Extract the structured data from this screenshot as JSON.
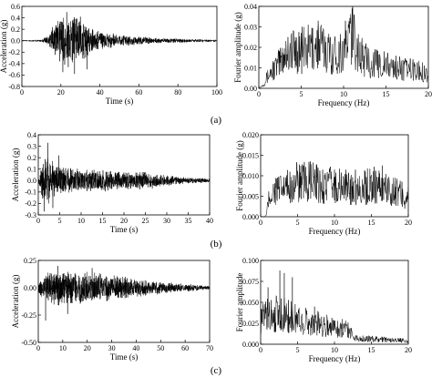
{
  "panel_labels": [
    "(a)",
    "(b)",
    "(c)"
  ],
  "chart_data": [
    {
      "type": "line",
      "panel": "(a)",
      "title": "",
      "xlabel": "Time (s)",
      "ylabel": "Acceleration (g)",
      "xlim": [
        0,
        100
      ],
      "ylim": [
        -0.8,
        0.6
      ],
      "xticks": [
        "0",
        "20",
        "40",
        "60",
        "80",
        "100"
      ],
      "yticks": [
        "-0.8",
        "-0.6",
        "-0.4",
        "-0.2",
        "0.0",
        "0.2",
        "0.4",
        "0.6"
      ],
      "envelope": {
        "t": [
          0,
          10,
          14,
          17,
          20,
          22,
          25,
          28,
          32,
          36,
          40,
          45,
          50,
          60,
          70,
          80,
          90,
          100
        ],
        "amp": [
          0.01,
          0.02,
          0.12,
          0.35,
          0.5,
          0.52,
          0.5,
          0.46,
          0.36,
          0.26,
          0.2,
          0.15,
          0.11,
          0.08,
          0.05,
          0.04,
          0.03,
          0.02
        ]
      },
      "peaks": [
        {
          "x": 23.0,
          "y": 0.5
        },
        {
          "x": 27.0,
          "y": -0.58
        },
        {
          "x": 30.0,
          "y": 0.42
        },
        {
          "x": 33.5,
          "y": -0.5
        },
        {
          "x": 21.0,
          "y": -0.55
        }
      ]
    },
    {
      "type": "line",
      "panel": "(a)",
      "title": "",
      "xlabel": "Frequency (Hz)",
      "ylabel": "Fourier amplitude (g)",
      "xlim": [
        0,
        20
      ],
      "ylim": [
        0,
        0.04
      ],
      "xticks": [
        "0",
        "5",
        "10",
        "15",
        "20"
      ],
      "yticks": [
        "0.00",
        "0.01",
        "0.02",
        "0.03",
        "0.04"
      ],
      "envelope": {
        "f": [
          0,
          0.5,
          1,
          1.5,
          2,
          2.5,
          3,
          3.5,
          4,
          5,
          6,
          7,
          8,
          9,
          10,
          11,
          12,
          13,
          14,
          15,
          16,
          17,
          18,
          19,
          20
        ],
        "amp": [
          0,
          0.002,
          0.006,
          0.009,
          0.011,
          0.014,
          0.018,
          0.02,
          0.02,
          0.02,
          0.021,
          0.023,
          0.02,
          0.018,
          0.02,
          0.03,
          0.017,
          0.014,
          0.013,
          0.012,
          0.011,
          0.01,
          0.01,
          0.009,
          0.008
        ]
      },
      "peaks": [
        {
          "x": 11.0,
          "y": 0.039
        },
        {
          "x": 7.0,
          "y": 0.033
        },
        {
          "x": 2.4,
          "y": 0.018
        },
        {
          "x": 4.3,
          "y": 0.025
        }
      ]
    },
    {
      "type": "line",
      "panel": "(b)",
      "title": "",
      "xlabel": "Time (s)",
      "ylabel": "Acceleration (g)",
      "xlim": [
        0,
        40
      ],
      "ylim": [
        -0.3,
        0.4
      ],
      "xticks": [
        "0",
        "5",
        "10",
        "15",
        "20",
        "25",
        "30",
        "35",
        "40"
      ],
      "yticks": [
        "-0.3",
        "-0.2",
        "-0.1",
        "0.0",
        "0.1",
        "0.2",
        "0.3",
        "0.4"
      ],
      "envelope": {
        "t": [
          0,
          0.5,
          1,
          2,
          3,
          4,
          6,
          8,
          10,
          12,
          15,
          18,
          20,
          22,
          25,
          27,
          30,
          33,
          36,
          40
        ],
        "amp": [
          0.02,
          0.08,
          0.2,
          0.22,
          0.2,
          0.15,
          0.13,
          0.12,
          0.11,
          0.1,
          0.1,
          0.09,
          0.085,
          0.08,
          0.08,
          0.07,
          0.05,
          0.035,
          0.025,
          0.02
        ]
      },
      "peaks": [
        {
          "x": 2.2,
          "y": 0.33
        },
        {
          "x": 1.4,
          "y": -0.27
        },
        {
          "x": 3.4,
          "y": -0.24
        },
        {
          "x": 4.8,
          "y": 0.22
        }
      ]
    },
    {
      "type": "line",
      "panel": "(b)",
      "title": "",
      "xlabel": "Frequency (Hz)",
      "ylabel": "Fourier amplitude (g)",
      "xlim": [
        0,
        20
      ],
      "ylim": [
        0,
        0.02
      ],
      "xticks": [
        "0",
        "5",
        "10",
        "15",
        "20"
      ],
      "yticks": [
        "0.000",
        "0.005",
        "0.010",
        "0.015",
        "0.020"
      ],
      "envelope": {
        "f": [
          0,
          0.5,
          0.8,
          1,
          1.5,
          2,
          3,
          4,
          5,
          6,
          7,
          8,
          9,
          10,
          11,
          12,
          13,
          14,
          15,
          16,
          17,
          18,
          19,
          20
        ],
        "amp": [
          0,
          0,
          0.0005,
          0.004,
          0.006,
          0.007,
          0.007,
          0.008,
          0.009,
          0.009,
          0.009,
          0.008,
          0.0085,
          0.008,
          0.008,
          0.0075,
          0.008,
          0.0075,
          0.0085,
          0.008,
          0.0075,
          0.007,
          0.006,
          0.005
        ]
      },
      "peaks": [
        {
          "x": 5.8,
          "y": 0.0125
        },
        {
          "x": 7.6,
          "y": 0.0128
        },
        {
          "x": 16.5,
          "y": 0.0125
        },
        {
          "x": 10.0,
          "y": 0.0115
        }
      ]
    },
    {
      "type": "line",
      "panel": "(c)",
      "title": "",
      "xlabel": "Time (s)",
      "ylabel": "Acceleration (g)",
      "xlim": [
        0,
        70
      ],
      "ylim": [
        -0.5,
        0.25
      ],
      "xticks": [
        "0",
        "10",
        "20",
        "30",
        "40",
        "50",
        "60",
        "70"
      ],
      "yticks": [
        "-0.50",
        "-0.25",
        "0.00",
        "0.25"
      ],
      "envelope": {
        "t": [
          0,
          1,
          3,
          8,
          15,
          20,
          25,
          30,
          35,
          40,
          45,
          50,
          55,
          60,
          65,
          70
        ],
        "amp": [
          0.05,
          0.1,
          0.15,
          0.17,
          0.16,
          0.15,
          0.14,
          0.12,
          0.11,
          0.09,
          0.08,
          0.06,
          0.05,
          0.04,
          0.03,
          0.02
        ]
      },
      "peaks": [
        {
          "x": 3.0,
          "y": -0.3
        },
        {
          "x": 8.0,
          "y": 0.2
        },
        {
          "x": 12.0,
          "y": -0.24
        },
        {
          "x": 22.0,
          "y": 0.18
        }
      ]
    },
    {
      "type": "line",
      "panel": "(c)",
      "title": "",
      "xlabel": "Frequency (Hz)",
      "ylabel": "Fourier amplitude",
      "xlim": [
        0,
        20
      ],
      "ylim": [
        0,
        0.1
      ],
      "xticks": [
        "0",
        "5",
        "10",
        "15",
        "20"
      ],
      "yticks": [
        "0.000",
        "0.025",
        "0.050",
        "0.075",
        "0.100"
      ],
      "envelope": {
        "f": [
          0,
          0.5,
          1,
          2,
          3,
          4,
          5,
          6,
          7,
          8,
          9,
          10,
          11,
          12,
          12.5,
          13,
          14,
          15,
          16,
          17,
          18,
          19,
          20
        ],
        "amp": [
          0.03,
          0.035,
          0.04,
          0.04,
          0.038,
          0.035,
          0.032,
          0.03,
          0.028,
          0.026,
          0.024,
          0.022,
          0.021,
          0.02,
          0.009,
          0.008,
          0.007,
          0.007,
          0.006,
          0.006,
          0.005,
          0.005,
          0.004
        ]
      },
      "peaks": [
        {
          "x": 2.6,
          "y": 0.088
        },
        {
          "x": 3.2,
          "y": 0.085
        },
        {
          "x": 1.0,
          "y": 0.068
        },
        {
          "x": 4.3,
          "y": 0.08
        },
        {
          "x": 7.3,
          "y": 0.045
        }
      ]
    }
  ]
}
